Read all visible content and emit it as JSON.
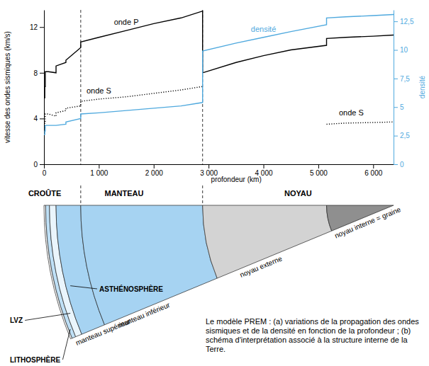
{
  "chart_data": {
    "type": "line",
    "xlabel": "profondeur (km)",
    "ylabel": "vitesse des ondes sismiques (km/s)",
    "y2label": "densité",
    "x": [
      0,
      15,
      15,
      24,
      24,
      80,
      220,
      220,
      400,
      400,
      670,
      670,
      1000,
      1500,
      2000,
      2500,
      2891,
      2891,
      3500,
      4000,
      4500,
      5150,
      5150,
      5500,
      6000,
      6371
    ],
    "xlim": [
      0,
      6371
    ],
    "xticks": [
      0,
      {
        "value": 1000,
        "label": "1 000"
      },
      {
        "value": 2000,
        "label": "2 000"
      },
      {
        "value": 3000,
        "label": "3 000"
      },
      {
        "value": 4000,
        "label": "4 000"
      },
      {
        "value": 5000,
        "label": "5 000"
      },
      {
        "value": 6000,
        "label": "6 000"
      }
    ],
    "ylim": [
      0,
      13.5
    ],
    "yticks": [
      0,
      4,
      8,
      12
    ],
    "y2lim": [
      0,
      13.5
    ],
    "y2ticks": [
      0,
      {
        "value": 2.5,
        "label": "2,5"
      },
      5,
      {
        "value": 7.5,
        "label": "7,5"
      },
      10,
      {
        "value": 12.5,
        "label": "12,5"
      }
    ],
    "legend": "inline",
    "series": [
      {
        "name": "onde P",
        "color": "#000000",
        "line_style": "solid",
        "values": [
          5.8,
          5.8,
          6.8,
          6.8,
          8.1,
          8.1,
          8.0,
          8.6,
          8.9,
          9.1,
          10.2,
          10.7,
          11.1,
          11.7,
          12.3,
          12.8,
          13.4,
          8.0,
          8.9,
          9.5,
          10.0,
          10.4,
          11.0,
          11.1,
          11.2,
          11.3
        ]
      },
      {
        "name": "onde S",
        "color": "#000000",
        "line_style": "dotted",
        "values": [
          3.2,
          3.2,
          3.7,
          3.7,
          4.4,
          4.4,
          4.2,
          4.5,
          4.7,
          4.9,
          5.1,
          5.5,
          5.7,
          5.9,
          6.2,
          6.5,
          6.8,
          null,
          null,
          null,
          null,
          null,
          3.5,
          3.6,
          3.65,
          3.7
        ]
      },
      {
        "name": "densité",
        "color": "#4fa9de",
        "line_style": "solid",
        "axis": "y2",
        "values": [
          2.6,
          2.6,
          2.9,
          2.9,
          3.4,
          3.4,
          3.4,
          3.4,
          3.5,
          3.7,
          4.0,
          4.4,
          4.5,
          4.7,
          4.9,
          5.1,
          5.4,
          9.9,
          10.6,
          11.1,
          11.6,
          12.2,
          12.8,
          12.9,
          13.0,
          13.1
        ]
      }
    ],
    "annotations": [
      {
        "text": "onde S",
        "x": 5600,
        "y": 4.3
      }
    ]
  },
  "diagram": {
    "radius_km": 6371,
    "headings": [
      {
        "text": "CROÛTE",
        "from_km": 0,
        "to_km": 30
      },
      {
        "text": "MANTEAU",
        "from_km": 30,
        "to_km": 2891
      },
      {
        "text": "NOYAU",
        "from_km": 2891,
        "to_km": 6371
      }
    ],
    "layers": [
      {
        "from_km": 0,
        "to_km": 30,
        "color": "#ffffff"
      },
      {
        "from_km": 30,
        "to_km": 100,
        "color": "#bfe0f6"
      },
      {
        "from_km": 100,
        "to_km": 220,
        "color": "#eaf5fc"
      },
      {
        "from_km": 220,
        "to_km": 670,
        "color": "#a6d3f2"
      },
      {
        "from_km": 670,
        "to_km": 2891,
        "color": "#a6d3f2"
      },
      {
        "from_km": 2891,
        "to_km": 5150,
        "color": "#d3d3d3"
      },
      {
        "from_km": 5150,
        "to_km": 6371,
        "color": "#8f8f8f"
      }
    ],
    "dashed_boundaries_km": [
      670,
      2891
    ],
    "callouts": [
      {
        "text": "ASTHÉNOSPHÈRE",
        "depth_km": 300
      },
      {
        "text": "LVZ",
        "depth_km": 160
      },
      {
        "text": "LITHOSPHÈRE",
        "depth_km": 60
      }
    ],
    "edge_labels": [
      {
        "text": "manteau supérieur",
        "depth_km": 60
      },
      {
        "text": "manteau inférieur",
        "depth_km": 900
      },
      {
        "text": "noyau externe",
        "depth_km": 3300
      },
      {
        "text": "noyau interne = graine",
        "depth_km": 5170
      }
    ]
  },
  "caption": "Le modèle PREM : (a) variations de la propagation des ondes sismiques et de la densité en fonction de la profondeur ; (b) schéma d'interprétation associé à la structure interne de la Terre."
}
